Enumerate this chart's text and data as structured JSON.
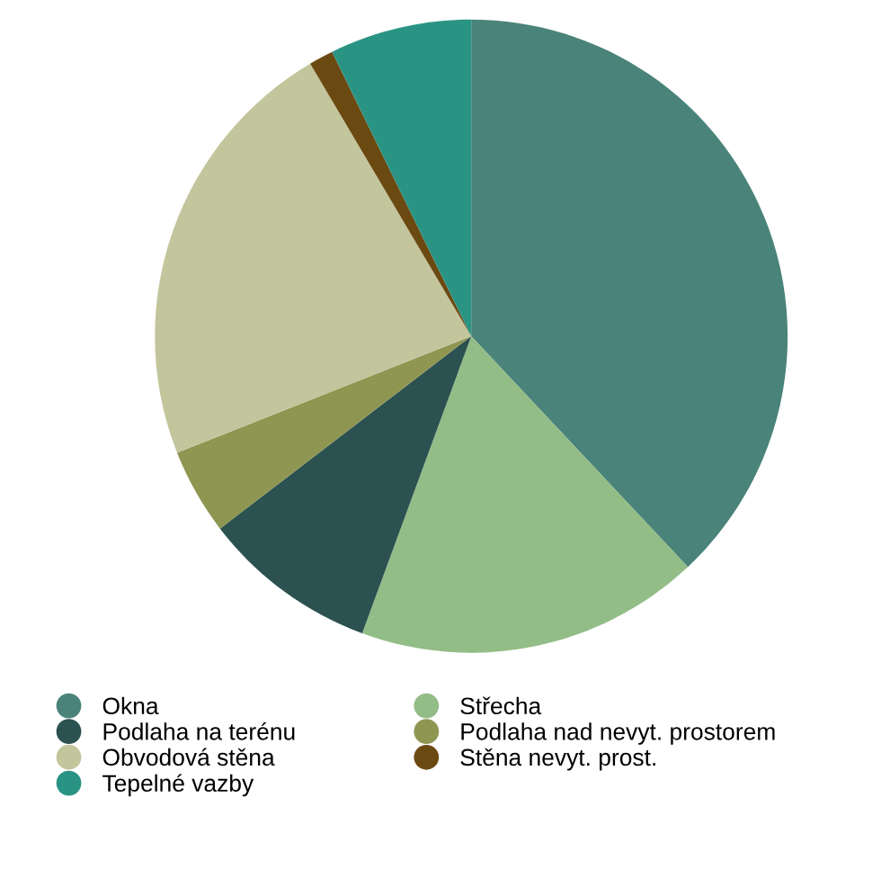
{
  "chart_data": {
    "type": "pie",
    "categories": [
      "Okna",
      "Střecha",
      "Podlaha na terénu",
      "Podlaha nad nevyt. prostorem",
      "Obvodová stěna",
      "Stěna nevyt. prost.",
      "Tepelné vazby"
    ],
    "values": [
      38,
      17.6,
      9,
      4.4,
      22.5,
      1.25,
      7.25
    ],
    "colors": [
      "#4a8379",
      "#93bd87",
      "#2b5150",
      "#8e9652",
      "#c3c59c",
      "#6b4a12",
      "#2a9484"
    ],
    "legend": "bottom"
  }
}
